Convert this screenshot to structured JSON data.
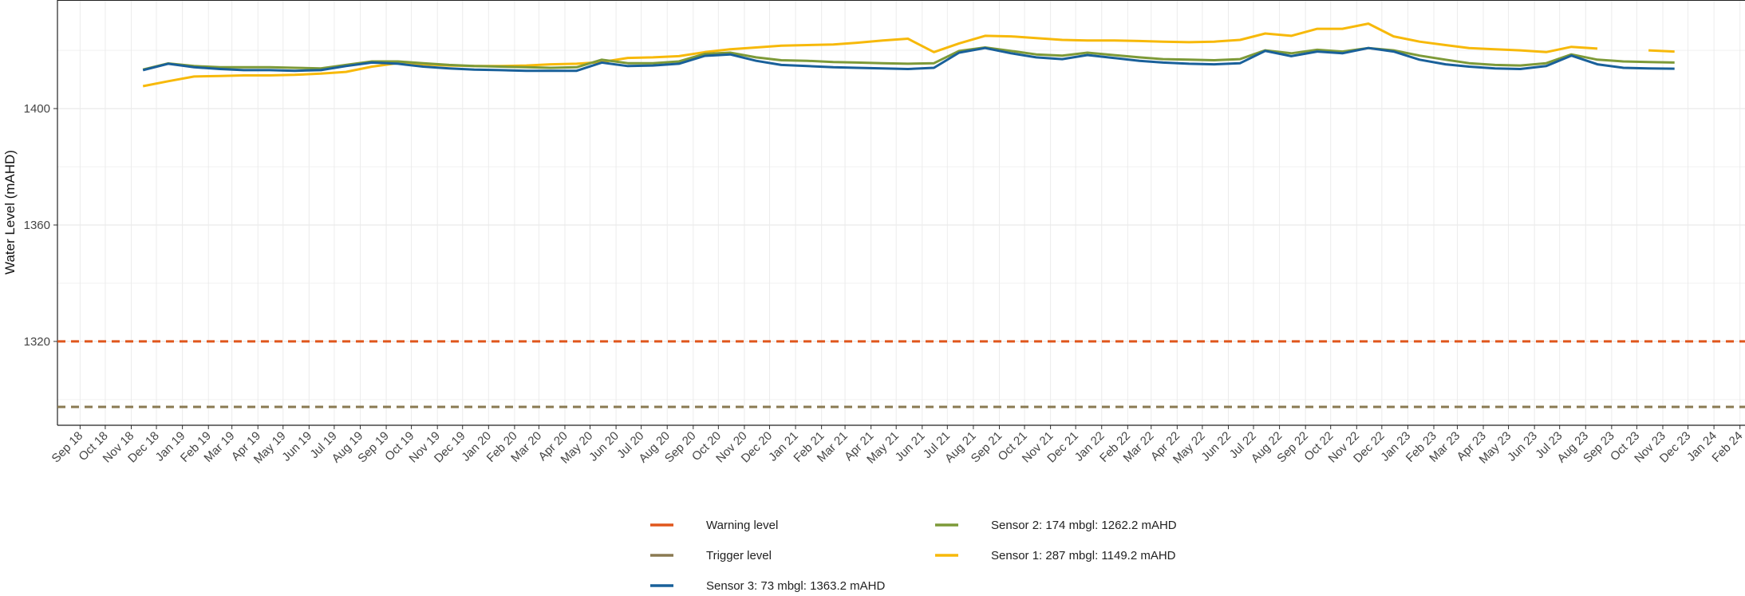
{
  "chart_data": {
    "type": "line",
    "y_label": "Water Level (mAHD)",
    "ylim": [
      1291.2,
      1437.3
    ],
    "yticks": [
      1320,
      1360,
      1400
    ],
    "grid": true,
    "xlim": [
      "2018-08-05",
      "2024-02-07"
    ],
    "xticks": [
      {
        "value": "2018-09-01",
        "label": "Sep 18"
      },
      {
        "value": "2018-10-01",
        "label": "Oct 18"
      },
      {
        "value": "2018-11-01",
        "label": "Nov 18"
      },
      {
        "value": "2018-12-01",
        "label": "Dec 18"
      },
      {
        "value": "2019-01-01",
        "label": "Jan 19"
      },
      {
        "value": "2019-02-01",
        "label": "Feb 19"
      },
      {
        "value": "2019-03-01",
        "label": "Mar 19"
      },
      {
        "value": "2019-04-01",
        "label": "Apr 19"
      },
      {
        "value": "2019-05-01",
        "label": "May 19"
      },
      {
        "value": "2019-06-01",
        "label": "Jun 19"
      },
      {
        "value": "2019-07-01",
        "label": "Jul 19"
      },
      {
        "value": "2019-08-01",
        "label": "Aug 19"
      },
      {
        "value": "2019-09-01",
        "label": "Sep 19"
      },
      {
        "value": "2019-10-01",
        "label": "Oct 19"
      },
      {
        "value": "2019-11-01",
        "label": "Nov 19"
      },
      {
        "value": "2019-12-01",
        "label": "Dec 19"
      },
      {
        "value": "2020-01-01",
        "label": "Jan 20"
      },
      {
        "value": "2020-02-01",
        "label": "Feb 20"
      },
      {
        "value": "2020-03-01",
        "label": "Mar 20"
      },
      {
        "value": "2020-04-01",
        "label": "Apr 20"
      },
      {
        "value": "2020-05-01",
        "label": "May 20"
      },
      {
        "value": "2020-06-01",
        "label": "Jun 20"
      },
      {
        "value": "2020-07-01",
        "label": "Jul 20"
      },
      {
        "value": "2020-08-01",
        "label": "Aug 20"
      },
      {
        "value": "2020-09-01",
        "label": "Sep 20"
      },
      {
        "value": "2020-10-01",
        "label": "Oct 20"
      },
      {
        "value": "2020-11-01",
        "label": "Nov 20"
      },
      {
        "value": "2020-12-01",
        "label": "Dec 20"
      },
      {
        "value": "2021-01-01",
        "label": "Jan 21"
      },
      {
        "value": "2021-02-01",
        "label": "Feb 21"
      },
      {
        "value": "2021-03-01",
        "label": "Mar 21"
      },
      {
        "value": "2021-04-01",
        "label": "Apr 21"
      },
      {
        "value": "2021-05-01",
        "label": "May 21"
      },
      {
        "value": "2021-06-01",
        "label": "Jun 21"
      },
      {
        "value": "2021-07-01",
        "label": "Jul 21"
      },
      {
        "value": "2021-08-01",
        "label": "Aug 21"
      },
      {
        "value": "2021-09-01",
        "label": "Sep 21"
      },
      {
        "value": "2021-10-01",
        "label": "Oct 21"
      },
      {
        "value": "2021-11-01",
        "label": "Nov 21"
      },
      {
        "value": "2021-12-01",
        "label": "Dec 21"
      },
      {
        "value": "2022-01-01",
        "label": "Jan 22"
      },
      {
        "value": "2022-02-01",
        "label": "Feb 22"
      },
      {
        "value": "2022-03-01",
        "label": "Mar 22"
      },
      {
        "value": "2022-04-01",
        "label": "Apr 22"
      },
      {
        "value": "2022-05-01",
        "label": "May 22"
      },
      {
        "value": "2022-06-01",
        "label": "Jun 22"
      },
      {
        "value": "2022-07-01",
        "label": "Jul 22"
      },
      {
        "value": "2022-08-01",
        "label": "Aug 22"
      },
      {
        "value": "2022-09-01",
        "label": "Sep 22"
      },
      {
        "value": "2022-10-01",
        "label": "Oct 22"
      },
      {
        "value": "2022-11-01",
        "label": "Nov 22"
      },
      {
        "value": "2022-12-01",
        "label": "Dec 22"
      },
      {
        "value": "2023-01-01",
        "label": "Jan 23"
      },
      {
        "value": "2023-02-01",
        "label": "Feb 23"
      },
      {
        "value": "2023-03-01",
        "label": "Mar 23"
      },
      {
        "value": "2023-04-01",
        "label": "Apr 23"
      },
      {
        "value": "2023-05-01",
        "label": "May 23"
      },
      {
        "value": "2023-06-01",
        "label": "Jun 23"
      },
      {
        "value": "2023-07-01",
        "label": "Jul 23"
      },
      {
        "value": "2023-08-01",
        "label": "Aug 23"
      },
      {
        "value": "2023-09-01",
        "label": "Sep 23"
      },
      {
        "value": "2023-10-01",
        "label": "Oct 23"
      },
      {
        "value": "2023-11-01",
        "label": "Nov 23"
      },
      {
        "value": "2023-12-01",
        "label": "Dec 23"
      },
      {
        "value": "2024-01-01",
        "label": "Jan 24"
      },
      {
        "value": "2024-02-01",
        "label": "Feb 24"
      }
    ],
    "x": [
      "2018-11-15",
      "2018-12-15",
      "2019-01-15",
      "2019-02-15",
      "2019-03-15",
      "2019-04-15",
      "2019-05-15",
      "2019-06-15",
      "2019-07-15",
      "2019-08-15",
      "2019-09-15",
      "2019-10-15",
      "2019-11-15",
      "2019-12-15",
      "2020-01-15",
      "2020-02-15",
      "2020-03-15",
      "2020-04-15",
      "2020-05-15",
      "2020-06-15",
      "2020-07-15",
      "2020-08-15",
      "2020-09-15",
      "2020-10-15",
      "2020-11-15",
      "2020-12-15",
      "2021-01-15",
      "2021-02-15",
      "2021-03-15",
      "2021-04-15",
      "2021-05-15",
      "2021-06-15",
      "2021-07-15",
      "2021-08-15",
      "2021-09-15",
      "2021-10-15",
      "2021-11-15",
      "2021-12-15",
      "2022-01-15",
      "2022-02-15",
      "2022-03-15",
      "2022-04-15",
      "2022-05-15",
      "2022-06-15",
      "2022-07-15",
      "2022-08-15",
      "2022-09-15",
      "2022-10-15",
      "2022-11-15",
      "2022-12-15",
      "2023-01-15",
      "2023-02-15",
      "2023-03-15",
      "2023-04-15",
      "2023-05-15",
      "2023-06-15",
      "2023-07-15",
      "2023-08-15",
      "2023-09-15",
      "2023-10-15",
      "2023-11-15"
    ],
    "hlines": [
      {
        "name": "Warning level",
        "value": 1320,
        "color": "#e0561c"
      },
      {
        "name": "Trigger level",
        "value": 1297.5,
        "color": "#8a7a52"
      }
    ],
    "series": [
      {
        "name": "Sensor 3: 73 mbgl:  1363.2 mAHD",
        "color": "#19609a",
        "values": [
          1413.2,
          1415.4,
          1414.2,
          1413.6,
          1413.2,
          1413.2,
          1413.0,
          1413.2,
          1414.6,
          1415.8,
          1415.4,
          1414.4,
          1413.8,
          1413.4,
          1413.2,
          1413.0,
          1413.0,
          1413.0,
          1415.8,
          1414.6,
          1414.8,
          1415.4,
          1418.1,
          1418.6,
          1416.4,
          1415.0,
          1414.6,
          1414.2,
          1414.0,
          1413.8,
          1413.6,
          1414.0,
          1419.2,
          1420.8,
          1419.0,
          1417.6,
          1417.0,
          1418.4,
          1417.4,
          1416.4,
          1415.8,
          1415.4,
          1415.2,
          1415.6,
          1419.8,
          1418.0,
          1419.6,
          1419.0,
          1420.8,
          1419.6,
          1416.8,
          1415.2,
          1414.4,
          1413.8,
          1413.6,
          1414.6,
          1418.2,
          1415.2,
          1414.0,
          1413.8,
          1413.7
        ]
      },
      {
        "name": "Sensor 2: 174 mbgl:  1262.2 mAHD",
        "color": "#7d9a38",
        "values": [
          1413.4,
          1415.5,
          1414.6,
          1414.2,
          1414.2,
          1414.2,
          1414.0,
          1413.8,
          1415.0,
          1416.2,
          1416.2,
          1415.6,
          1415.0,
          1414.6,
          1414.4,
          1414.2,
          1414.0,
          1414.2,
          1416.8,
          1415.6,
          1415.6,
          1416.2,
          1418.8,
          1419.2,
          1417.6,
          1416.6,
          1416.4,
          1416.0,
          1415.8,
          1415.6,
          1415.4,
          1415.6,
          1419.8,
          1421.0,
          1419.8,
          1418.6,
          1418.2,
          1419.2,
          1418.4,
          1417.6,
          1417.0,
          1416.8,
          1416.6,
          1417.0,
          1420.0,
          1419.0,
          1420.2,
          1419.6,
          1420.8,
          1420.0,
          1418.2,
          1416.8,
          1415.6,
          1415.0,
          1414.8,
          1415.6,
          1418.6,
          1416.8,
          1416.2,
          1416.0,
          1415.8
        ]
      },
      {
        "name": "Sensor 1: 287 mbgl:  1149.2 mAHD",
        "color": "#f7b90a",
        "values": [
          1407.7,
          1409.4,
          1411.0,
          1411.2,
          1411.4,
          1411.4,
          1411.6,
          1412.0,
          1412.6,
          1414.4,
          1415.6,
          1415.2,
          1414.8,
          1414.6,
          1414.6,
          1414.8,
          1415.2,
          1415.4,
          1416.0,
          1417.4,
          1417.6,
          1418.0,
          1419.4,
          1420.4,
          1421.0,
          1421.6,
          1421.8,
          1422.0,
          1422.6,
          1423.4,
          1424.0,
          1419.4,
          1422.4,
          1425.0,
          1424.8,
          1424.2,
          1423.6,
          1423.4,
          1423.4,
          1423.2,
          1423.0,
          1422.8,
          1423.0,
          1423.6,
          1425.8,
          1425.0,
          1427.4,
          1427.4,
          1429.2,
          1424.8,
          1423.0,
          1421.8,
          1420.8,
          1420.4,
          1420.0,
          1419.4,
          1421.2,
          1420.6,
          null,
          1420.0,
          1419.6
        ]
      }
    ]
  }
}
